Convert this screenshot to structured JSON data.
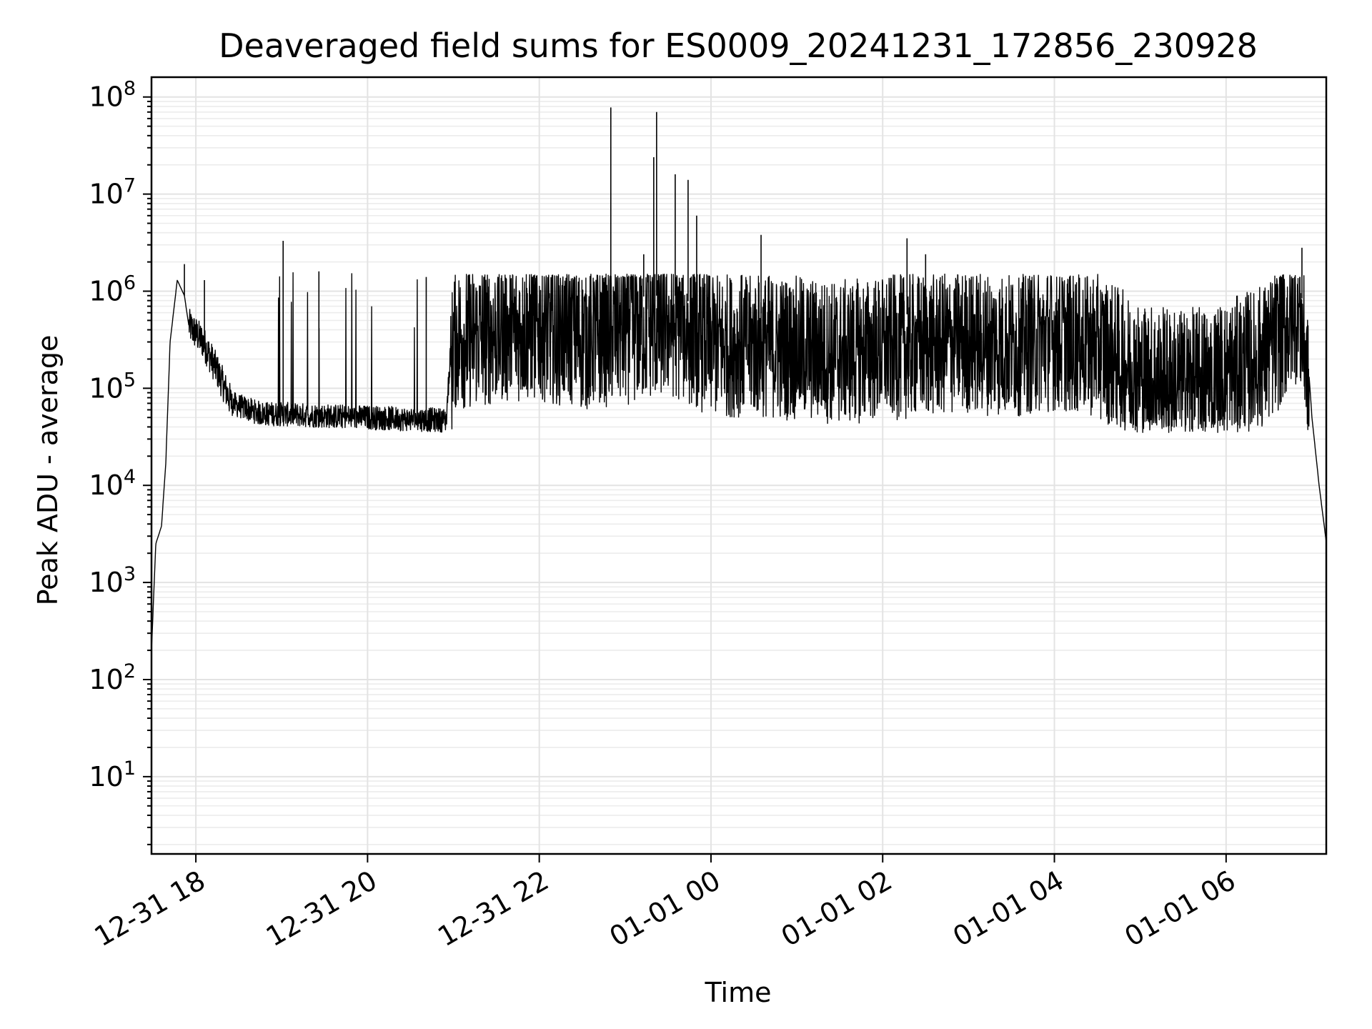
{
  "chart_data": {
    "type": "line",
    "title": "Deaveraged field sums for ES0009_20241231_172856_230928",
    "xlabel": "Time",
    "ylabel": "Peak ADU - average",
    "yscale": "log",
    "ylim": [
      1.6,
      160000000
    ],
    "xlim": [
      "2024-12-31 17:29",
      "2025-01-01 07:10"
    ],
    "grid": "major and minor, light gray",
    "legend": "none",
    "line_color": "#000000",
    "yticks": [
      {
        "base": "10",
        "exp": "1",
        "value": 10
      },
      {
        "base": "10",
        "exp": "2",
        "value": 100
      },
      {
        "base": "10",
        "exp": "3",
        "value": 1000
      },
      {
        "base": "10",
        "exp": "4",
        "value": 10000
      },
      {
        "base": "10",
        "exp": "5",
        "value": 100000
      },
      {
        "base": "10",
        "exp": "6",
        "value": 1000000
      },
      {
        "base": "10",
        "exp": "7",
        "value": 10000000
      },
      {
        "base": "10",
        "exp": "8",
        "value": 100000000
      }
    ],
    "xticks": [
      {
        "label": "12-31 18",
        "time": "2024-12-31 18:00"
      },
      {
        "label": "12-31 20",
        "time": "2024-12-31 20:00"
      },
      {
        "label": "12-31 22",
        "time": "2024-12-31 22:00"
      },
      {
        "label": "01-01 00",
        "time": "2025-01-01 00:00"
      },
      {
        "label": "01-01 02",
        "time": "2025-01-01 02:00"
      },
      {
        "label": "01-01 04",
        "time": "2025-01-01 04:00"
      },
      {
        "label": "01-01 06",
        "time": "2025-01-01 06:00"
      }
    ],
    "series": [
      {
        "points": [
          [
            "2024-12-31 17:29",
            200
          ],
          [
            "2024-12-31 17:32",
            2500
          ],
          [
            "2024-12-31 17:36",
            3800
          ],
          [
            "2024-12-31 17:39",
            17000
          ],
          [
            "2024-12-31 17:42",
            300000
          ],
          [
            "2024-12-31 17:47",
            1300000
          ],
          [
            "2024-12-31 17:52",
            900000
          ],
          [
            "2024-12-31 17:55",
            450000
          ],
          [
            "2024-12-31 18:05",
            300000
          ],
          [
            "2024-12-31 18:15",
            150000
          ],
          [
            "2024-12-31 18:25",
            70000
          ],
          [
            "2024-12-31 18:45",
            55000
          ],
          [
            "2024-12-31 19:30",
            52000
          ],
          [
            "2024-12-31 20:30",
            48000
          ],
          [
            "2024-12-31 20:55",
            47000
          ],
          [
            "2024-12-31 21:00",
            700000
          ],
          [
            "2024-12-31 21:30",
            800000
          ],
          [
            "2024-12-31 22:00",
            900000
          ],
          [
            "2024-12-31 22:30",
            700000
          ],
          [
            "2024-12-31 23:00",
            800000
          ],
          [
            "2024-12-31 23:30",
            1000000
          ],
          [
            "2025-01-01 00:00",
            600000
          ],
          [
            "2025-01-01 00:30",
            600000
          ],
          [
            "2025-01-01 01:00",
            550000
          ],
          [
            "2025-01-01 01:30",
            500000
          ],
          [
            "2025-01-01 02:00",
            550000
          ],
          [
            "2025-01-01 02:30",
            600000
          ],
          [
            "2025-01-01 03:00",
            650000
          ],
          [
            "2025-01-01 03:30",
            600000
          ],
          [
            "2025-01-01 04:00",
            700000
          ],
          [
            "2025-01-01 04:30",
            600000
          ],
          [
            "2025-01-01 05:00",
            300000
          ],
          [
            "2025-01-01 05:30",
            250000
          ],
          [
            "2025-01-01 06:00",
            300000
          ],
          [
            "2025-01-01 06:30",
            500000
          ],
          [
            "2025-01-01 06:50",
            1400000
          ],
          [
            "2025-01-01 06:55",
            600000
          ],
          [
            "2025-01-01 07:00",
            50000
          ],
          [
            "2025-01-01 07:05",
            10000
          ],
          [
            "2025-01-01 07:10",
            2600
          ]
        ],
        "spikes": [
          [
            "2024-12-31 17:52",
            1900000
          ],
          [
            "2024-12-31 18:06",
            1300000
          ],
          [
            "2024-12-31 19:01",
            3300000
          ],
          [
            "2024-12-31 19:26",
            1600000
          ],
          [
            "2024-12-31 20:41",
            1400000
          ],
          [
            "2024-12-31 22:50",
            78000000
          ],
          [
            "2024-12-31 23:13",
            2400000
          ],
          [
            "2024-12-31 23:20",
            24000000
          ],
          [
            "2024-12-31 23:22",
            70000000
          ],
          [
            "2024-12-31 23:35",
            16000000
          ],
          [
            "2024-12-31 23:44",
            14000000
          ],
          [
            "2024-12-31 23:50",
            6000000
          ],
          [
            "2025-01-01 00:35",
            3800000
          ],
          [
            "2025-01-01 02:17",
            3500000
          ],
          [
            "2025-01-01 02:30",
            2400000
          ],
          [
            "2025-01-01 06:53",
            2800000
          ]
        ]
      }
    ]
  }
}
